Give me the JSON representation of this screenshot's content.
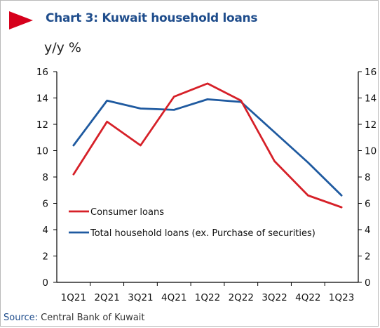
{
  "header": {
    "title": "Chart 3: Kuwait household loans",
    "unit": "y/y %"
  },
  "footer": {
    "source_label": "Source:",
    "source_value": "Central Bank of Kuwait"
  },
  "colors": {
    "consumer": "#d62028",
    "total": "#1f5aa0",
    "title": "#1f4d8c",
    "accent": "#d6001c"
  },
  "chart_data": {
    "type": "line",
    "categories": [
      "1Q21",
      "2Q21",
      "3Q21",
      "4Q21",
      "1Q22",
      "2Q22",
      "3Q22",
      "4Q22",
      "1Q23"
    ],
    "series": [
      {
        "name": "Consumer loans",
        "values": [
          8.2,
          12.2,
          10.4,
          14.1,
          15.1,
          13.8,
          9.2,
          6.6,
          5.7
        ]
      },
      {
        "name": "Total household loans (ex. Purchase of securities)",
        "values": [
          10.4,
          13.8,
          13.2,
          13.1,
          13.9,
          13.7,
          11.4,
          9.1,
          6.6
        ]
      }
    ],
    "ylim": [
      0,
      16
    ],
    "y_ticks": [
      0,
      2,
      4,
      6,
      8,
      10,
      12,
      14,
      16
    ],
    "y_right_ticks": [
      0,
      2,
      4,
      6,
      8,
      10,
      12,
      14,
      16
    ],
    "grid": false,
    "legend": "bottom-left"
  }
}
